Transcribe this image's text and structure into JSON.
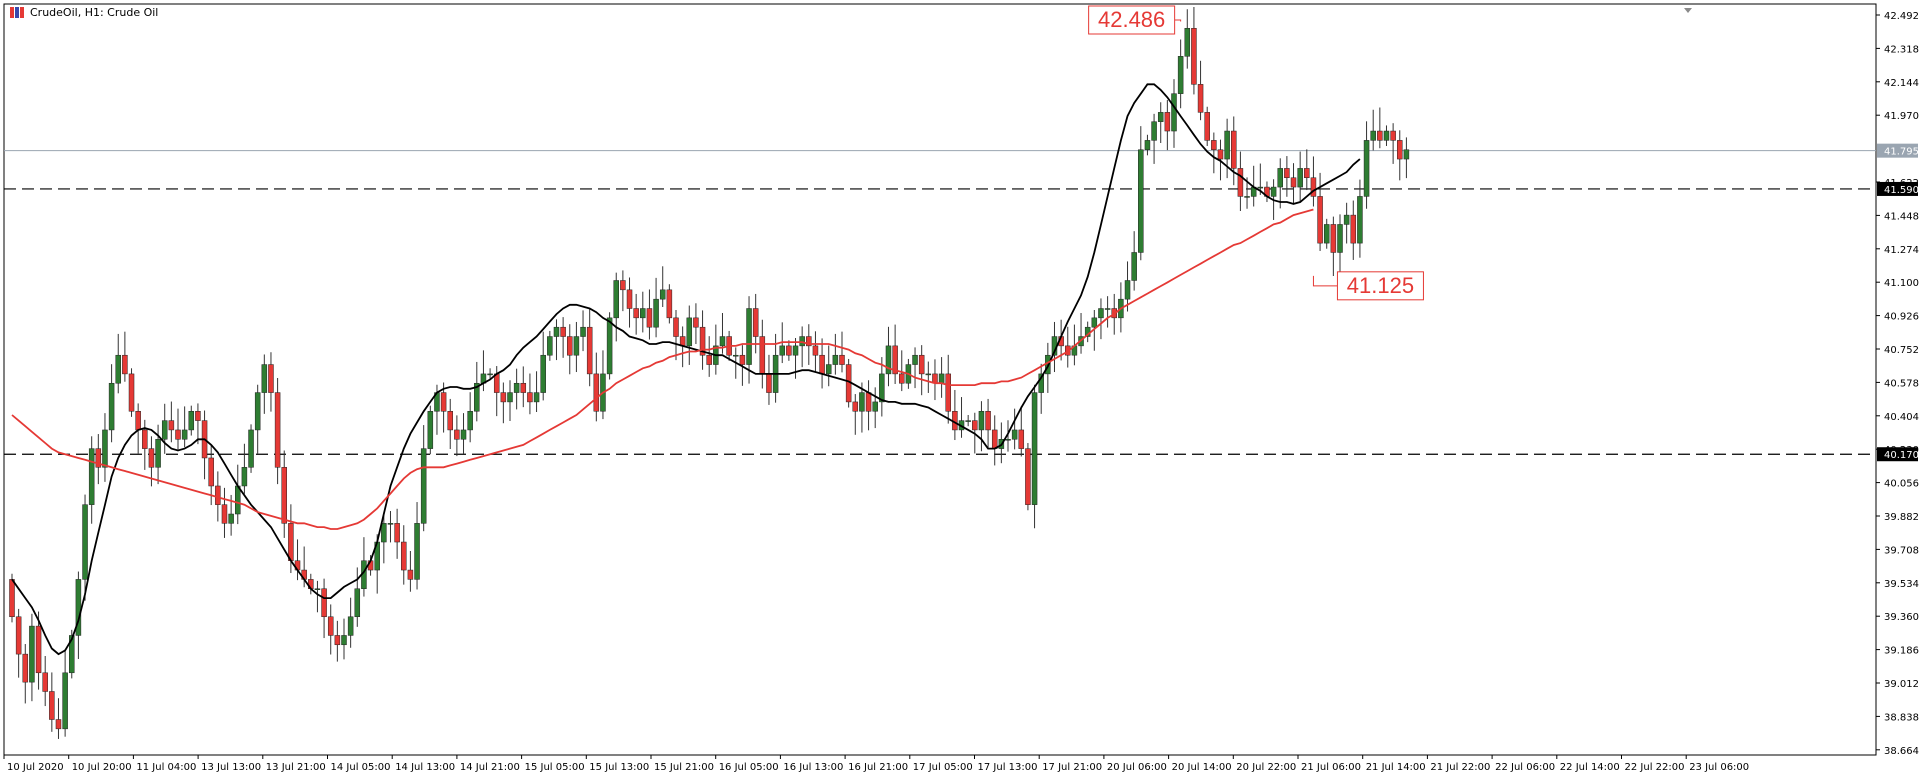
{
  "header": {
    "symbol_label": "CrudeOil, H1:  Crude Oil",
    "icon": "candlestick-chart-icon"
  },
  "colors": {
    "bull": "#2e7d32",
    "bear": "#e53935",
    "ma_fast": "#000000",
    "ma_slow": "#e53935",
    "grid_line": "#000000",
    "current_price_line": "#9aa5b1"
  },
  "chart_data": {
    "type": "candlestick",
    "title": "CrudeOil, H1:  Crude Oil",
    "ylim": [
      38.56,
      42.58
    ],
    "y_ticks": [
      "42.492",
      "42.318",
      "42.144",
      "41.970",
      "41.622",
      "41.448",
      "41.274",
      "41.100",
      "40.926",
      "40.752",
      "40.578",
      "40.404",
      "40.230",
      "40.056",
      "39.882",
      "39.708",
      "39.534",
      "39.360",
      "39.186",
      "39.012",
      "38.838",
      "38.664"
    ],
    "x_ticks": [
      "10 Jul 2020",
      "10 Jul 20:00",
      "11 Jul 04:00",
      "13 Jul 13:00",
      "13 Jul 21:00",
      "14 Jul 05:00",
      "14 Jul 13:00",
      "14 Jul 21:00",
      "15 Jul 05:00",
      "15 Jul 13:00",
      "15 Jul 21:00",
      "16 Jul 05:00",
      "16 Jul 13:00",
      "16 Jul 21:00",
      "17 Jul 05:00",
      "17 Jul 13:00",
      "17 Jul 21:00",
      "20 Jul 06:00",
      "20 Jul 14:00",
      "20 Jul 22:00",
      "21 Jul 06:00",
      "21 Jul 14:00",
      "21 Jul 22:00",
      "22 Jul 06:00",
      "22 Jul 14:00",
      "22 Jul 22:00",
      "23 Jul 06:00"
    ],
    "current_price": "41.795",
    "current_price_value": 41.795,
    "levels": [
      {
        "label": "41.590",
        "value": 41.59
      },
      {
        "label": "40.170",
        "value": 40.17
      }
    ],
    "annotations": [
      {
        "text": "42.486",
        "value": 42.486,
        "type": "high",
        "anchor_index": 176
      },
      {
        "text": "41.125",
        "value": 41.125,
        "type": "low",
        "anchor_index": 196
      }
    ],
    "closes": [
      39.3,
      39.1,
      38.95,
      39.25,
      39.0,
      38.9,
      38.75,
      38.7,
      39.0,
      39.2,
      39.5,
      39.9,
      40.2,
      40.1,
      40.3,
      40.55,
      40.7,
      40.6,
      40.4,
      40.3,
      40.2,
      40.1,
      40.25,
      40.35,
      40.3,
      40.25,
      40.3,
      40.4,
      40.35,
      40.15,
      40.0,
      39.9,
      39.8,
      39.85,
      40.0,
      40.1,
      40.3,
      40.5,
      40.65,
      40.5,
      40.1,
      39.8,
      39.6,
      39.55,
      39.5,
      39.45,
      39.45,
      39.3,
      39.2,
      39.15,
      39.2,
      39.3,
      39.45,
      39.6,
      39.55,
      39.7,
      39.8,
      39.8,
      39.7,
      39.55,
      39.5,
      39.8,
      40.2,
      40.4,
      40.5,
      40.4,
      40.3,
      40.25,
      40.3,
      40.4,
      40.55,
      40.6,
      40.6,
      40.5,
      40.45,
      40.5,
      40.55,
      40.5,
      40.45,
      40.5,
      40.7,
      40.8,
      40.85,
      40.8,
      40.7,
      40.8,
      40.85,
      40.6,
      40.4,
      40.6,
      40.9,
      41.1,
      41.05,
      40.95,
      40.9,
      40.95,
      40.85,
      41.0,
      41.05,
      40.9,
      40.8,
      40.75,
      40.9,
      40.85,
      40.7,
      40.65,
      40.75,
      40.8,
      40.7,
      40.7,
      40.65,
      40.95,
      40.8,
      40.6,
      40.5,
      40.7,
      40.75,
      40.7,
      40.75,
      40.8,
      40.75,
      40.7,
      40.6,
      40.65,
      40.7,
      40.65,
      40.45,
      40.4,
      40.5,
      40.4,
      40.45,
      40.6,
      40.75,
      40.6,
      40.55,
      40.65,
      40.7,
      40.6,
      40.6,
      40.55,
      40.6,
      40.4,
      40.3,
      40.35,
      40.35,
      40.3,
      40.4,
      40.3,
      40.2,
      40.25,
      40.25,
      40.3,
      40.2,
      39.9,
      40.5,
      40.6,
      40.7,
      40.8,
      40.75,
      40.7,
      40.75,
      40.8,
      40.85,
      40.9,
      40.95,
      40.95,
      40.9,
      41.0,
      41.1,
      41.25,
      41.8,
      41.85,
      41.95,
      42.0,
      41.9,
      42.1,
      42.3,
      42.45,
      42.15,
      42.0,
      41.85,
      41.8,
      41.75,
      41.9,
      41.7,
      41.55,
      41.55,
      41.6,
      41.6,
      41.55,
      41.6,
      41.7,
      41.65,
      41.6,
      41.7,
      41.65,
      41.55,
      41.3,
      41.4,
      41.25,
      41.4,
      41.45,
      41.3,
      41.55,
      41.85,
      41.9,
      41.85,
      41.9,
      41.85,
      41.75,
      41.8
    ],
    "series": [
      {
        "name": "MA fast",
        "values": [
          39.5,
          39.45,
          39.4,
          39.35,
          39.28,
          39.2,
          39.13,
          39.1,
          39.12,
          39.18,
          39.28,
          39.42,
          39.6,
          39.75,
          39.9,
          40.05,
          40.15,
          40.22,
          40.27,
          40.3,
          40.31,
          40.3,
          40.27,
          40.23,
          40.2,
          40.19,
          40.2,
          40.22,
          40.25,
          40.25,
          40.22,
          40.18,
          40.12,
          40.06,
          40.0,
          39.95,
          39.9,
          39.86,
          39.82,
          39.78,
          39.72,
          39.66,
          39.6,
          39.55,
          39.5,
          39.45,
          39.42,
          39.4,
          39.4,
          39.43,
          39.46,
          39.48,
          39.5,
          39.54,
          39.6,
          39.7,
          39.85,
          40.0,
          40.1,
          40.2,
          40.28,
          40.34,
          40.4,
          40.45,
          40.5,
          40.52,
          40.53,
          40.53,
          40.52,
          40.52,
          40.53,
          40.55,
          40.57,
          40.6,
          40.62,
          40.65,
          40.7,
          40.74,
          40.77,
          40.8,
          40.84,
          40.88,
          40.92,
          40.95,
          40.97,
          40.97,
          40.96,
          40.95,
          40.93,
          40.9,
          40.88,
          40.85,
          40.83,
          40.8,
          40.79,
          40.78,
          40.76,
          40.76,
          40.77,
          40.77,
          40.76,
          40.75,
          40.74,
          40.73,
          40.72,
          40.71,
          40.7,
          40.7,
          40.68,
          40.66,
          40.64,
          40.62,
          40.6,
          40.6,
          40.6,
          40.6,
          40.6,
          40.6,
          40.61,
          40.62,
          40.62,
          40.61,
          40.6,
          40.59,
          40.58,
          40.57,
          40.56,
          40.54,
          40.52,
          40.5,
          40.48,
          40.46,
          40.45,
          40.45,
          40.44,
          40.44,
          40.44,
          40.43,
          40.42,
          40.4,
          40.38,
          40.36,
          40.34,
          40.32,
          40.3,
          40.28,
          40.25,
          40.2,
          40.2,
          40.22,
          40.28,
          40.35,
          40.42,
          40.48,
          40.53,
          40.58,
          40.64,
          40.72,
          40.8,
          40.88,
          40.95,
          41.02,
          41.12,
          41.25,
          41.4,
          41.55,
          41.7,
          41.85,
          41.98,
          42.05,
          42.1,
          42.15,
          42.15,
          42.12,
          42.08,
          42.03,
          41.98,
          41.93,
          41.88,
          41.83,
          41.79,
          41.76,
          41.74,
          41.71,
          41.68,
          41.66,
          41.63,
          41.6,
          41.58,
          41.55,
          41.53,
          41.52,
          41.52,
          41.51,
          41.52,
          41.55,
          41.58,
          41.6,
          41.62,
          41.64,
          41.66,
          41.68,
          41.72,
          41.75
        ]
      },
      {
        "name": "MA slow",
        "values": [
          40.38,
          40.35,
          40.32,
          40.29,
          40.26,
          40.23,
          40.2,
          40.18,
          40.17,
          40.16,
          40.15,
          40.14,
          40.13,
          40.12,
          40.11,
          40.1,
          40.09,
          40.08,
          40.07,
          40.06,
          40.05,
          40.04,
          40.03,
          40.02,
          40.01,
          40.0,
          39.99,
          39.98,
          39.97,
          39.96,
          39.95,
          39.94,
          39.93,
          39.92,
          39.91,
          39.9,
          39.88,
          39.86,
          39.85,
          39.84,
          39.83,
          39.82,
          39.81,
          39.8,
          39.8,
          39.79,
          39.78,
          39.78,
          39.77,
          39.77,
          39.78,
          39.79,
          39.8,
          39.82,
          39.85,
          39.88,
          39.92,
          39.96,
          40.0,
          40.04,
          40.07,
          40.09,
          40.1,
          40.1,
          40.1,
          40.1,
          40.11,
          40.12,
          40.13,
          40.14,
          40.15,
          40.16,
          40.17,
          40.18,
          40.19,
          40.2,
          40.21,
          40.22,
          40.24,
          40.26,
          40.28,
          40.3,
          40.32,
          40.34,
          40.36,
          40.38,
          40.41,
          40.44,
          40.47,
          40.5,
          40.52,
          40.55,
          40.57,
          40.59,
          40.61,
          40.63,
          40.64,
          40.66,
          40.67,
          40.69,
          40.7,
          40.71,
          40.72,
          40.72,
          40.73,
          40.73,
          40.74,
          40.74,
          40.75,
          40.75,
          40.76,
          40.76,
          40.76,
          40.76,
          40.76,
          40.76,
          40.77,
          40.77,
          40.77,
          40.77,
          40.76,
          40.76,
          40.76,
          40.76,
          40.75,
          40.74,
          40.73,
          40.71,
          40.7,
          40.68,
          40.66,
          40.65,
          40.63,
          40.62,
          40.61,
          40.6,
          40.58,
          40.57,
          40.56,
          40.55,
          40.55,
          40.54,
          40.54,
          40.54,
          40.54,
          40.54,
          40.55,
          40.55,
          40.55,
          40.56,
          40.56,
          40.57,
          40.58,
          40.6,
          40.62,
          40.64,
          40.66,
          40.68,
          40.7,
          40.72,
          40.75,
          40.78,
          40.81,
          40.84,
          40.87,
          40.9,
          40.92,
          40.95,
          40.97,
          40.99,
          41.01,
          41.03,
          41.05,
          41.07,
          41.09,
          41.11,
          41.13,
          41.15,
          41.17,
          41.19,
          41.21,
          41.23,
          41.25,
          41.27,
          41.29,
          41.3,
          41.32,
          41.34,
          41.36,
          41.38,
          41.4,
          41.41,
          41.43,
          41.45,
          41.46,
          41.47,
          41.48
        ]
      }
    ]
  }
}
